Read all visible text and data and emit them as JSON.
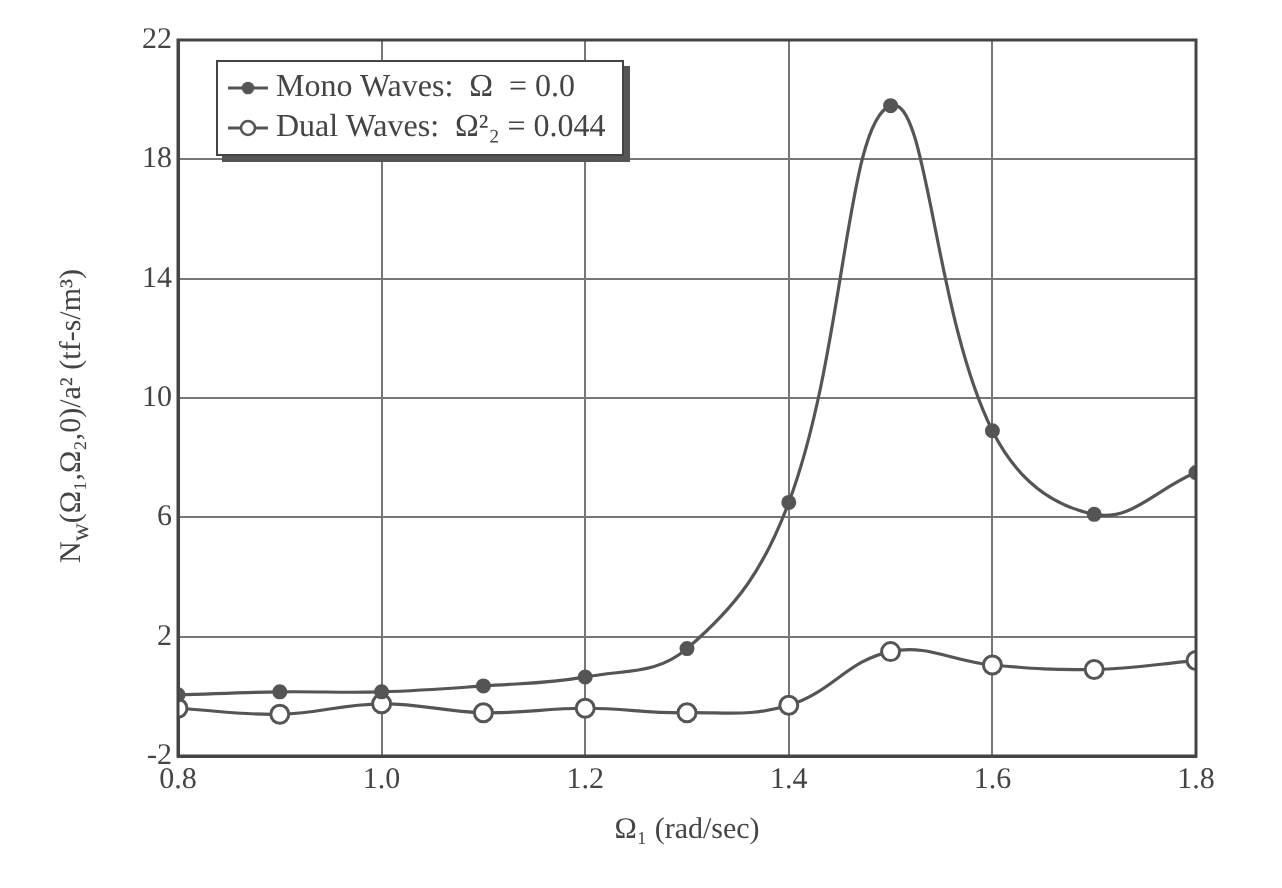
{
  "chart_data": {
    "type": "line",
    "xlabel": "Ω₁ (rad/sec)",
    "ylabel": "N$_{w}$(Ω₁,Ω₂,0)/a²   (tf-s/m³)",
    "x": [
      0.8,
      0.9,
      1.0,
      1.1,
      1.2,
      1.3,
      1.4,
      1.5,
      1.6,
      1.7,
      1.8
    ],
    "series": [
      {
        "name": "Mono Waves:  Ω  = 0.0",
        "color": "#555555",
        "values": [
          0.05,
          0.15,
          0.15,
          0.35,
          0.65,
          1.6,
          6.5,
          19.8,
          8.9,
          6.1,
          7.5
        ]
      },
      {
        "name": "Dual Waves:  Ω²₂ = 0.044",
        "color": "#555555",
        "values": [
          -0.4,
          -0.6,
          -0.25,
          -0.55,
          -0.4,
          -0.55,
          -0.3,
          1.5,
          1.05,
          0.9,
          1.2
        ]
      }
    ],
    "xlim": [
      0.8,
      1.8
    ],
    "xticks": [
      {
        "value": 0.8,
        "label": "0.8"
      },
      {
        "value": 1.0,
        "label": "1.0"
      },
      {
        "value": 1.2,
        "label": "1.2"
      },
      {
        "value": 1.4,
        "label": "1.4"
      },
      {
        "value": 1.6,
        "label": "1.6"
      },
      {
        "value": 1.8,
        "label": "1.8"
      }
    ],
    "ylim": [
      -2,
      22
    ],
    "yticks": [
      -2,
      2,
      6,
      10,
      14,
      18,
      22
    ],
    "grid": true,
    "legend": "top left",
    "marker": "circle",
    "line_style": "solid"
  }
}
